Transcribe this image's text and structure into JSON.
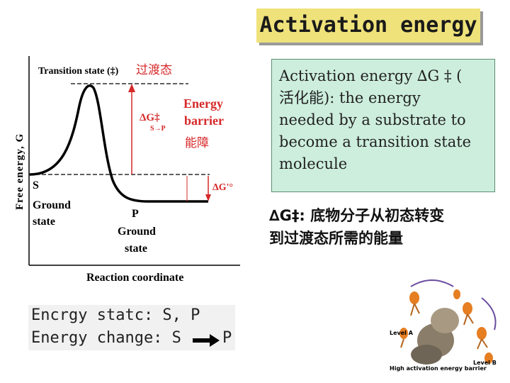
{
  "title": "Activation energy",
  "definition": {
    "line1": "Activation energy ∆G ‡ (",
    "line2": "活化能):   the energy",
    "line3": "needed by a substrate to",
    "line4": "become a transition state",
    "line5": "molecule"
  },
  "note": {
    "line1": "∆G‡: 底物分子从初态转变",
    "line2": "到过渡态所需的能量"
  },
  "energy_state": {
    "line1": "Encrgy statc: S, P",
    "line2_prefix": "Energy change: S",
    "line2_suffix": "P"
  },
  "diagram": {
    "y_axis_label": "Free energy, G",
    "x_axis_label": "Reaction coordinate",
    "transition_state_label": "Transition state (‡)",
    "transition_state_cn": "过渡态",
    "barrier_label_line1": "Energy",
    "barrier_label_line2": "barrier",
    "barrier_cn": "能障",
    "dg_barrier_label": "ΔG‡",
    "dg_barrier_sub": "S→P",
    "dg_standard_label": "ΔG'°",
    "s_label": "S",
    "ground_label": "Ground",
    "state_label": "state",
    "p_label": "P",
    "p_ground_label": "Ground",
    "p_state_label": "state",
    "colors": {
      "curve": "#000000",
      "barrier": "#d62828",
      "axis": "#000000"
    }
  },
  "cartoon": {
    "level_a": "Level A",
    "level_b": "Level B",
    "caption": "High activation energy barrier"
  }
}
